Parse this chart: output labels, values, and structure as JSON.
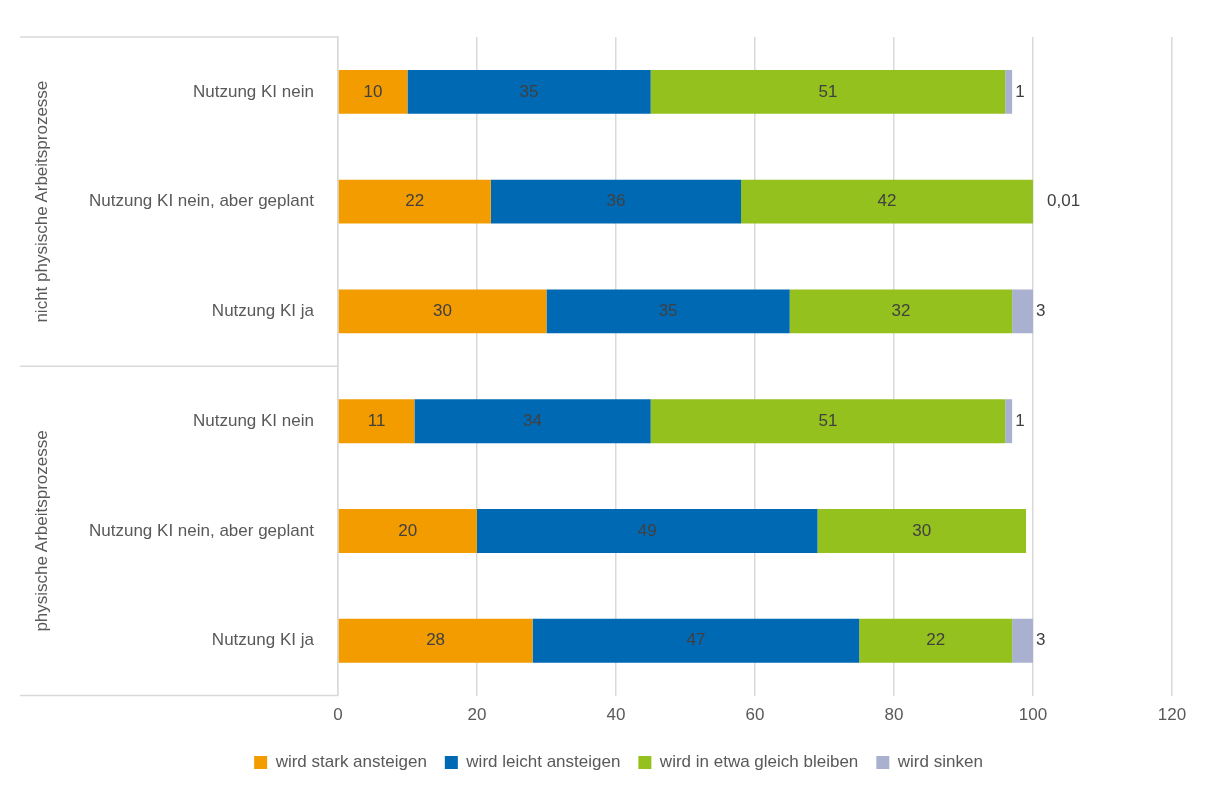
{
  "chart_data": {
    "type": "bar",
    "orientation": "horizontal",
    "stacked": true,
    "categories": [
      "Nutzung KI nein",
      "Nutzung KI nein, aber geplant",
      "Nutzung KI ja",
      "Nutzung KI nein",
      "Nutzung KI nein, aber geplant",
      "Nutzung KI ja"
    ],
    "annotations": [
      "nicht physische Arbeitsprozesse",
      "physische Arbeitsprozesse"
    ],
    "series": [
      {
        "name": "wird stark ansteigen",
        "color": "#f39c00",
        "values": [
          10,
          22,
          30,
          11,
          20,
          28
        ],
        "value_labels": [
          "10",
          "22",
          "30",
          "11",
          "20",
          "28"
        ]
      },
      {
        "name": "wird leicht ansteigen",
        "color": "#0069b4",
        "values": [
          35,
          36,
          35,
          34,
          49,
          47
        ],
        "value_labels": [
          "35",
          "36",
          "35",
          "34",
          "49",
          "47"
        ]
      },
      {
        "name": "wird in etwa gleich bleiben",
        "color": "#95c11f",
        "values": [
          51,
          42,
          32,
          51,
          30,
          22
        ],
        "value_labels": [
          "51",
          "42",
          "32",
          "51",
          "30",
          "22"
        ]
      },
      {
        "name": "wird sinken",
        "color": "#a9b0d0",
        "values": [
          1,
          0.01,
          3,
          1,
          null,
          3
        ],
        "value_labels": [
          "1",
          "0,01",
          "3",
          "1",
          null,
          "3"
        ]
      }
    ],
    "xlim": [
      0,
      120
    ],
    "xticks": [
      0,
      20,
      40,
      60,
      80,
      100,
      120
    ],
    "grid": "x",
    "legend": "bottom"
  }
}
